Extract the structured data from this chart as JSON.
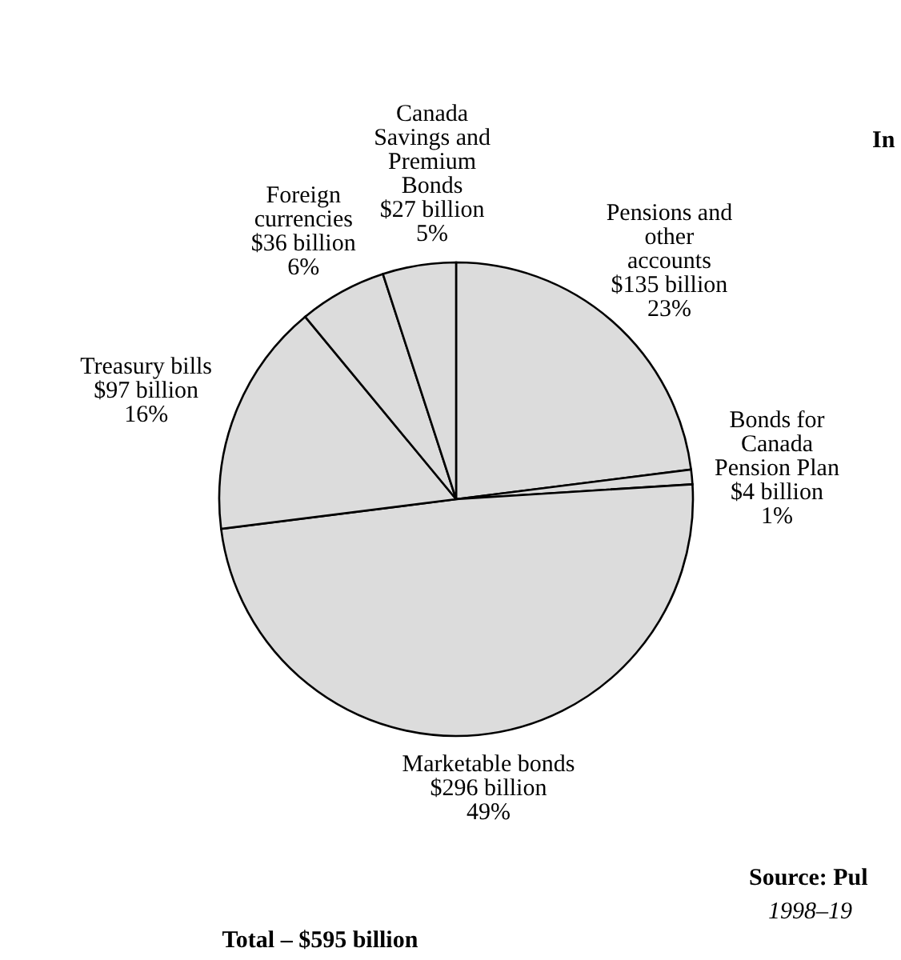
{
  "chart_data": {
    "type": "pie",
    "categories": [
      "Pensions and\nother\naccounts",
      "Bonds for\nCanada\nPension Plan",
      "Marketable bonds",
      "Treasury bills",
      "Foreign\ncurrencies",
      "Canada\nSavings and\nPremium\nBonds"
    ],
    "values": [
      23,
      1,
      49,
      16,
      6,
      5
    ],
    "value_labels": [
      "$135 billion\n23%",
      "$4 billion\n1%",
      "$296 billion\n49%",
      "$97 billion\n16%",
      "$36 billion\n6%",
      "$27 billion\n5%"
    ],
    "colors": [
      "#dcdcdc",
      "#dcdcdc",
      "#dcdcdc",
      "#dcdcdc",
      "#dcdcdc",
      "#dcdcdc"
    ],
    "annotations": [
      "Total – $595 billion",
      "In",
      "Source: Pul",
      "1998–19"
    ]
  }
}
